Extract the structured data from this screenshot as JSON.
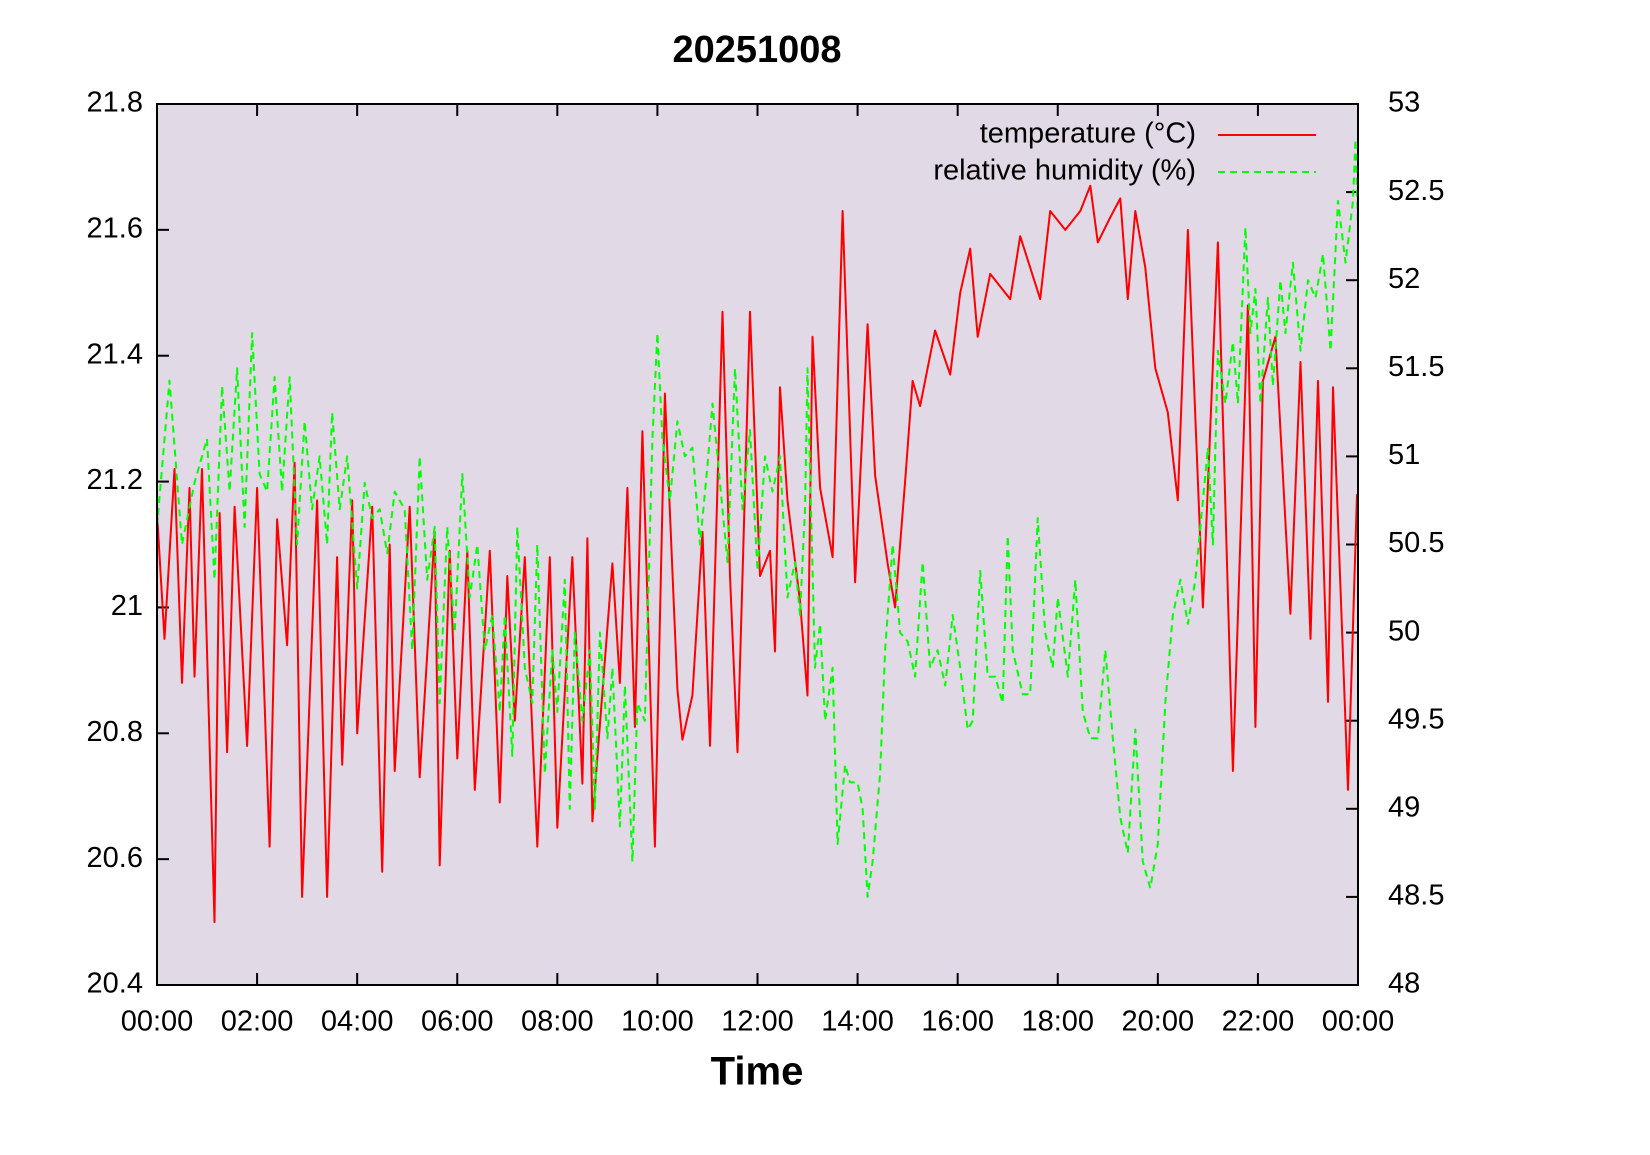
{
  "chart_data": {
    "type": "line",
    "title": "20251008",
    "xlabel": "Time",
    "background": "#e1d9e6",
    "legend": "upper right",
    "xlim": [
      0,
      24
    ],
    "xticks": [
      {
        "value": 0,
        "label": "00:00"
      },
      {
        "value": 2,
        "label": "02:00"
      },
      {
        "value": 4,
        "label": "04:00"
      },
      {
        "value": 6,
        "label": "06:00"
      },
      {
        "value": 8,
        "label": "08:00"
      },
      {
        "value": 10,
        "label": "10:00"
      },
      {
        "value": 12,
        "label": "12:00"
      },
      {
        "value": 14,
        "label": "14:00"
      },
      {
        "value": 16,
        "label": "16:00"
      },
      {
        "value": 18,
        "label": "18:00"
      },
      {
        "value": 20,
        "label": "20:00"
      },
      {
        "value": 22,
        "label": "22:00"
      },
      {
        "value": 24,
        "label": "00:00"
      }
    ],
    "ylim": [
      20.4,
      21.8
    ],
    "yticks": [
      20.4,
      20.6,
      20.8,
      21,
      21.2,
      21.4,
      21.6,
      21.8
    ],
    "y2lim": [
      48,
      53
    ],
    "y2ticks": [
      48,
      48.5,
      49,
      49.5,
      50,
      50.5,
      51,
      51.5,
      52,
      52.5,
      53
    ],
    "series": [
      {
        "name": "temperature (°C)",
        "color": "#ff0000",
        "dashed": false,
        "axis": "y",
        "x": [
          0,
          0.15,
          0.35,
          0.5,
          0.65,
          0.75,
          0.9,
          1.15,
          1.25,
          1.4,
          1.55,
          1.8,
          2.0,
          2.25,
          2.4,
          2.6,
          2.75,
          2.9,
          3.2,
          3.4,
          3.6,
          3.7,
          3.9,
          4.0,
          4.3,
          4.5,
          4.65,
          4.75,
          5.05,
          5.25,
          5.55,
          5.65,
          5.85,
          6.0,
          6.2,
          6.35,
          6.65,
          6.85,
          7.0,
          7.15,
          7.35,
          7.6,
          7.85,
          8.0,
          8.3,
          8.5,
          8.6,
          8.7,
          9.1,
          9.25,
          9.4,
          9.55,
          9.7,
          9.95,
          10.15,
          10.4,
          10.5,
          10.7,
          10.9,
          11.05,
          11.3,
          11.45,
          11.6,
          11.85,
          12.05,
          12.25,
          12.35,
          12.45,
          12.6,
          12.85,
          13.0,
          13.1,
          13.25,
          13.5,
          13.7,
          13.95,
          14.2,
          14.35,
          14.6,
          14.75,
          14.95,
          15.1,
          15.25,
          15.55,
          15.85,
          16.05,
          16.25,
          16.4,
          16.65,
          17.05,
          17.25,
          17.65,
          17.85,
          18.15,
          18.45,
          18.65,
          18.8,
          19.05,
          19.25,
          19.4,
          19.55,
          19.75,
          19.95,
          20.2,
          20.4,
          20.6,
          20.9,
          21.2,
          21.5,
          21.8,
          21.95,
          22.1,
          22.35,
          22.65,
          22.85,
          23.05,
          23.2,
          23.4,
          23.5,
          23.8,
          23.98
        ],
        "values": [
          21.15,
          20.95,
          21.22,
          20.88,
          21.19,
          20.89,
          21.22,
          20.5,
          21.15,
          20.77,
          21.16,
          20.78,
          21.19,
          20.62,
          21.14,
          20.94,
          21.23,
          20.54,
          21.17,
          20.54,
          21.08,
          20.75,
          21.17,
          20.8,
          21.16,
          20.58,
          21.1,
          20.74,
          21.16,
          20.73,
          21.12,
          20.59,
          21.09,
          20.76,
          21.09,
          20.71,
          21.09,
          20.69,
          21.05,
          20.82,
          21.08,
          20.62,
          21.08,
          20.65,
          21.08,
          20.72,
          21.11,
          20.66,
          21.07,
          20.88,
          21.19,
          20.81,
          21.28,
          20.62,
          21.34,
          20.87,
          20.79,
          20.86,
          21.12,
          20.78,
          21.47,
          21.05,
          20.77,
          21.47,
          21.05,
          21.09,
          20.93,
          21.35,
          21.17,
          21.01,
          20.86,
          21.43,
          21.19,
          21.08,
          21.63,
          21.04,
          21.45,
          21.21,
          21.07,
          21.0,
          21.2,
          21.36,
          21.32,
          21.44,
          21.37,
          21.5,
          21.57,
          21.43,
          21.53,
          21.49,
          21.59,
          21.49,
          21.63,
          21.6,
          21.63,
          21.67,
          21.58,
          21.62,
          21.65,
          21.49,
          21.63,
          21.54,
          21.38,
          21.31,
          21.17,
          21.6,
          21.0,
          21.58,
          20.74,
          21.48,
          20.81,
          21.36,
          21.43,
          20.99,
          21.39,
          20.95,
          21.36,
          20.85,
          21.35,
          20.71,
          21.18
        ]
      },
      {
        "name": "relative humidity (%)",
        "color": "#00ff00",
        "dashed": true,
        "axis": "y2",
        "x": [
          0,
          0.25,
          0.5,
          0.75,
          1.0,
          1.15,
          1.3,
          1.45,
          1.6,
          1.75,
          1.9,
          2.05,
          2.2,
          2.35,
          2.5,
          2.65,
          2.8,
          2.95,
          3.1,
          3.25,
          3.4,
          3.5,
          3.65,
          3.8,
          4.0,
          4.15,
          4.3,
          4.45,
          4.6,
          4.75,
          4.95,
          5.1,
          5.25,
          5.4,
          5.55,
          5.65,
          5.8,
          5.95,
          6.1,
          6.25,
          6.4,
          6.55,
          6.7,
          6.85,
          6.95,
          7.1,
          7.2,
          7.35,
          7.5,
          7.6,
          7.75,
          7.9,
          8.0,
          8.15,
          8.25,
          8.35,
          8.5,
          8.65,
          8.75,
          8.85,
          9.0,
          9.1,
          9.25,
          9.35,
          9.5,
          9.6,
          9.75,
          9.9,
          10.0,
          10.1,
          10.25,
          10.4,
          10.55,
          10.7,
          10.85,
          11.0,
          11.1,
          11.25,
          11.4,
          11.55,
          11.7,
          11.85,
          12.0,
          12.15,
          12.3,
          12.45,
          12.6,
          12.75,
          12.85,
          12.95,
          13.0,
          13.15,
          13.25,
          13.35,
          13.5,
          13.6,
          13.75,
          13.85,
          14.0,
          14.1,
          14.2,
          14.3,
          14.45,
          14.55,
          14.7,
          14.85,
          15.0,
          15.15,
          15.3,
          15.45,
          15.6,
          15.75,
          15.9,
          16.05,
          16.2,
          16.3,
          16.45,
          16.6,
          16.75,
          16.9,
          17.0,
          17.1,
          17.3,
          17.45,
          17.6,
          17.75,
          17.9,
          18.0,
          18.2,
          18.35,
          18.5,
          18.65,
          18.8,
          18.95,
          19.1,
          19.25,
          19.4,
          19.55,
          19.7,
          19.85,
          20.0,
          20.15,
          20.3,
          20.45,
          20.6,
          20.75,
          20.9,
          21.0,
          21.1,
          21.2,
          21.35,
          21.5,
          21.6,
          21.75,
          21.85,
          21.95,
          22.05,
          22.2,
          22.3,
          22.45,
          22.55,
          22.7,
          22.85,
          23.0,
          23.15,
          23.3,
          23.45,
          23.6,
          23.75,
          23.9,
          23.95,
          24.0
        ],
        "values": [
          50.6,
          51.43,
          50.5,
          50.85,
          51.1,
          50.3,
          51.4,
          50.8,
          51.5,
          50.6,
          51.7,
          50.9,
          50.8,
          51.45,
          50.8,
          51.45,
          50.5,
          51.2,
          50.7,
          51.0,
          50.5,
          51.25,
          50.7,
          51.0,
          50.25,
          50.85,
          50.65,
          50.7,
          50.45,
          50.8,
          50.7,
          49.9,
          51.0,
          50.3,
          50.6,
          49.6,
          50.6,
          50.0,
          50.9,
          50.2,
          50.5,
          49.9,
          50.1,
          49.55,
          50.1,
          49.3,
          50.6,
          49.8,
          49.6,
          50.5,
          49.2,
          49.9,
          49.55,
          50.3,
          49.0,
          50.0,
          49.5,
          49.9,
          49.0,
          50.0,
          49.4,
          49.8,
          48.9,
          49.7,
          48.7,
          49.6,
          49.5,
          51.1,
          51.7,
          51.1,
          50.75,
          51.2,
          51.0,
          51.05,
          50.5,
          50.95,
          51.3,
          50.85,
          50.4,
          51.5,
          50.7,
          51.15,
          50.35,
          51.0,
          50.8,
          51.0,
          50.2,
          50.4,
          50.1,
          50.7,
          51.5,
          49.8,
          50.05,
          49.5,
          49.8,
          48.8,
          49.25,
          49.15,
          49.15,
          49.0,
          48.5,
          48.7,
          49.2,
          49.9,
          50.5,
          50.0,
          49.95,
          49.75,
          50.4,
          49.8,
          49.9,
          49.7,
          50.1,
          49.8,
          49.45,
          49.5,
          50.35,
          49.75,
          49.75,
          49.6,
          50.55,
          49.9,
          49.65,
          49.65,
          50.65,
          50.0,
          49.8,
          50.2,
          49.75,
          50.3,
          49.55,
          49.4,
          49.4,
          49.9,
          49.4,
          48.95,
          48.75,
          49.45,
          48.7,
          48.55,
          48.8,
          49.6,
          50.1,
          50.3,
          50.05,
          50.3,
          50.75,
          51.05,
          50.5,
          51.6,
          51.3,
          51.65,
          51.3,
          52.3,
          51.7,
          51.95,
          51.3,
          51.9,
          51.4,
          52.0,
          51.7,
          52.1,
          51.6,
          52.0,
          51.9,
          52.15,
          51.6,
          52.45,
          52.1,
          52.45,
          52.8,
          52.3
        ]
      }
    ]
  }
}
